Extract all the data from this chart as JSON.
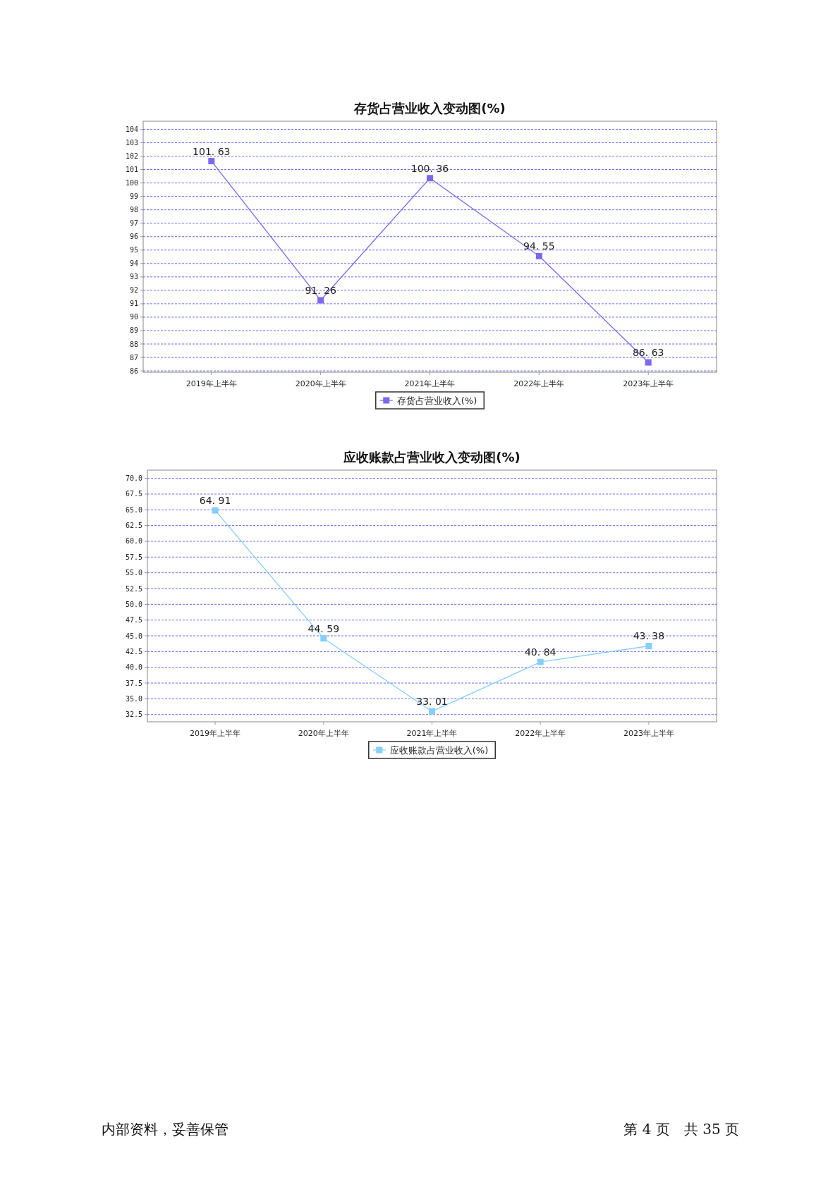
{
  "chart_data": [
    {
      "type": "line",
      "title": "存货占营业收入变动图(%)",
      "categories": [
        "2019年上半年",
        "2020年上半年",
        "2021年上半年",
        "2022年上半年",
        "2023年上半年"
      ],
      "series": [
        {
          "name": "存货占营业收入(%)",
          "color": "#7b68ee",
          "values": [
            101.63,
            91.26,
            100.36,
            94.55,
            86.63
          ]
        }
      ],
      "ylim": [
        85.9,
        104.6
      ],
      "yticks": [
        86,
        87,
        88,
        89,
        90,
        91,
        92,
        93,
        94,
        95,
        96,
        97,
        98,
        99,
        100,
        101,
        102,
        103,
        104
      ],
      "grid": "y",
      "legend": "bottom",
      "marker": "square",
      "data_labels": true
    },
    {
      "type": "line",
      "title": "应收账款占营业收入变动图(%)",
      "categories": [
        "2019年上半年",
        "2020年上半年",
        "2021年上半年",
        "2022年上半年",
        "2023年上半年"
      ],
      "series": [
        {
          "name": "应收账款占营业收入(%)",
          "color": "#87cefa",
          "values": [
            64.91,
            44.59,
            33.01,
            40.84,
            43.38
          ]
        }
      ],
      "ylim": [
        31.35,
        71.3
      ],
      "yticks": [
        {
          "value": 32.5,
          "label": "32.5"
        },
        {
          "value": 35,
          "label": "35.0"
        },
        {
          "value": 37.5,
          "label": "37.5"
        },
        {
          "value": 40,
          "label": "40.0"
        },
        {
          "value": 42.5,
          "label": "42.5"
        },
        {
          "value": 45,
          "label": "45.0"
        },
        {
          "value": 47.5,
          "label": "47.5"
        },
        {
          "value": 50,
          "label": "50.0"
        },
        {
          "value": 52.5,
          "label": "52.5"
        },
        {
          "value": 55,
          "label": "55.0"
        },
        {
          "value": 57.5,
          "label": "57.5"
        },
        {
          "value": 60,
          "label": "60.0"
        },
        {
          "value": 62.5,
          "label": "62.5"
        },
        {
          "value": 65,
          "label": "65.0"
        },
        {
          "value": 67.5,
          "label": "67.5"
        },
        {
          "value": 70,
          "label": "70.0"
        }
      ],
      "grid": "y",
      "legend": "bottom",
      "marker": "square",
      "data_labels": true,
      "annotations": [
        "内部资料，妥善保管",
        "第 4 页　共 35 页"
      ]
    }
  ]
}
